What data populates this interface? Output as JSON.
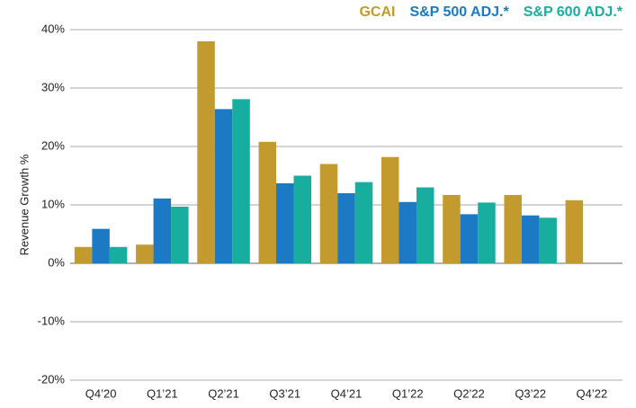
{
  "chart_data": {
    "type": "bar",
    "y_label": "Revenue Growth %",
    "categories": [
      "Q4’20",
      "Q1’21",
      "Q2’21",
      "Q3’21",
      "Q4’21",
      "Q1’22",
      "Q2’22",
      "Q3’22",
      "Q4’22"
    ],
    "series": [
      {
        "name": "GCAI",
        "color": "#c39a2d",
        "values": [
          2.8,
          3.2,
          38.0,
          20.8,
          17.0,
          18.2,
          11.7,
          11.7,
          10.8
        ]
      },
      {
        "name": "S&P 500 ADJ.*",
        "color": "#1b7ac3",
        "values": [
          5.9,
          11.1,
          26.4,
          13.7,
          12.0,
          10.5,
          8.4,
          8.2,
          null
        ]
      },
      {
        "name": "S&P 600 ADJ.*",
        "color": "#18ae9f",
        "values": [
          2.8,
          9.7,
          28.1,
          15.0,
          13.9,
          13.0,
          10.4,
          7.8,
          null
        ]
      }
    ],
    "ylim": [
      -20,
      40
    ],
    "yticks": [
      {
        "value": -20,
        "label": "-20%"
      },
      {
        "value": -10,
        "label": "-10%"
      },
      {
        "value": 0,
        "label": "0%"
      },
      {
        "value": 10,
        "label": "10%"
      },
      {
        "value": 20,
        "label": "20%"
      },
      {
        "value": 30,
        "label": "30%"
      },
      {
        "value": 40,
        "label": "40%"
      }
    ],
    "grid": true,
    "legend": "top-right"
  }
}
